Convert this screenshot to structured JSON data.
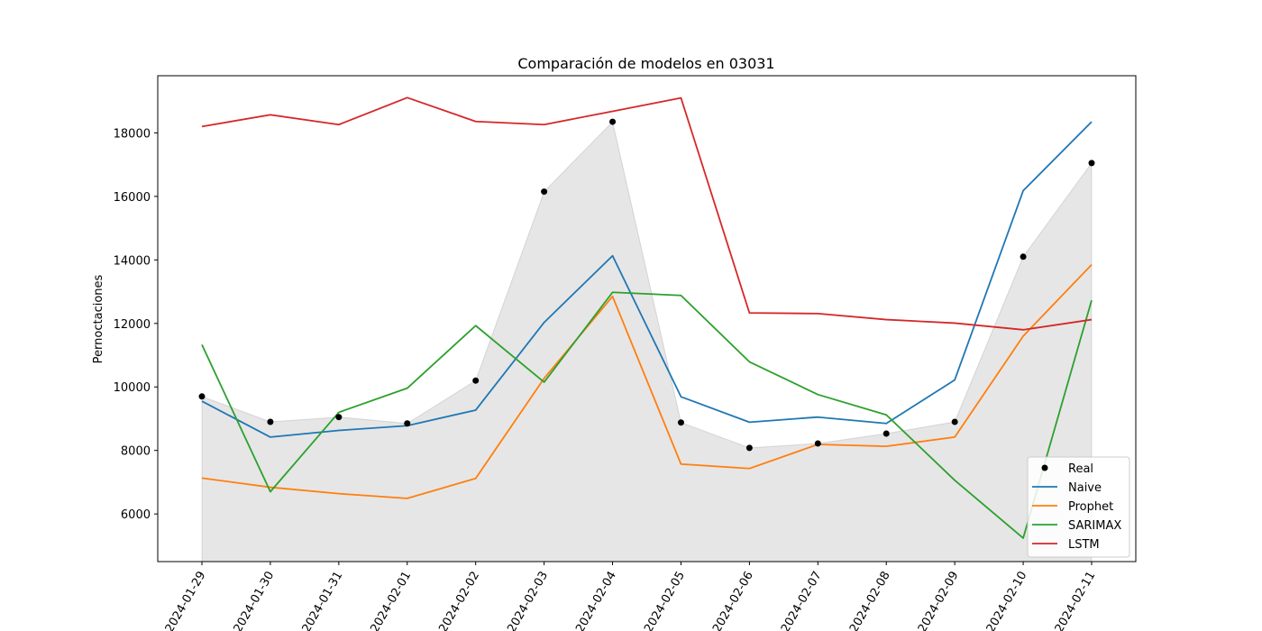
{
  "chart_data": {
    "type": "line",
    "title": "Comparación de modelos en 03031",
    "xlabel": "",
    "ylabel": "Pernoctaciones",
    "x": [
      "2024-01-29",
      "2024-01-30",
      "2024-01-31",
      "2024-02-01",
      "2024-02-02",
      "2024-02-03",
      "2024-02-04",
      "2024-02-05",
      "2024-02-06",
      "2024-02-07",
      "2024-02-08",
      "2024-02-09",
      "2024-02-10",
      "2024-02-11"
    ],
    "ylim": [
      4500,
      19800
    ],
    "yticks": [
      6000,
      8000,
      10000,
      12000,
      14000,
      16000,
      18000
    ],
    "fill_baseline": 4500,
    "grid": false,
    "legend_position": "bottom-right",
    "series": [
      {
        "name": "Real",
        "kind": "scatter",
        "color": "#000000",
        "values": [
          9700,
          8900,
          9050,
          8850,
          10200,
          16150,
          18350,
          8880,
          8080,
          8220,
          8530,
          8900,
          14100,
          17050
        ]
      },
      {
        "name": "Naive",
        "kind": "line",
        "color": "#1f77b4",
        "values": [
          9550,
          8420,
          8630,
          8780,
          9270,
          12030,
          14130,
          9690,
          8890,
          9050,
          8850,
          10220,
          16180,
          18350
        ]
      },
      {
        "name": "Prophet",
        "kind": "line",
        "color": "#ff7f0e",
        "values": [
          7130,
          6840,
          6640,
          6490,
          7120,
          10270,
          12850,
          7570,
          7430,
          8190,
          8130,
          8420,
          11600,
          13850
        ]
      },
      {
        "name": "SARIMAX",
        "kind": "line",
        "color": "#2ca02c",
        "values": [
          11330,
          6700,
          9200,
          9960,
          11930,
          10150,
          12980,
          12880,
          10790,
          9760,
          9120,
          7060,
          5240,
          12730
        ]
      },
      {
        "name": "LSTM",
        "kind": "line",
        "color": "#d62728",
        "values": [
          18200,
          18570,
          18260,
          19110,
          18360,
          18260,
          18680,
          19100,
          12330,
          12310,
          12120,
          12010,
          11800,
          12120
        ]
      }
    ]
  }
}
